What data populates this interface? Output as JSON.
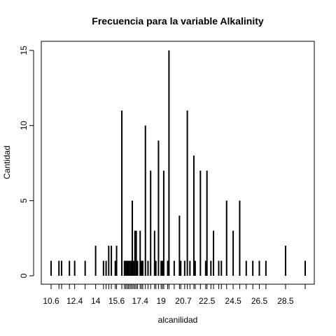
{
  "chart_data": {
    "type": "bar",
    "title": "Frecuencia para la variable Alkalinity",
    "xlabel": "alcanilidad",
    "ylabel": "Cantidad",
    "xlim": [
      10.6,
      30.0
    ],
    "ylim": [
      0,
      15
    ],
    "x_tick_labels": [
      "10.6",
      "12.4",
      "14",
      "15.6",
      "17.4",
      "19",
      "20.7",
      "22.5",
      "24.5",
      "26.5",
      "28.5"
    ],
    "y_ticks": [
      0,
      5,
      10,
      15
    ],
    "grid": false,
    "legend": "none",
    "x": [
      10.6,
      11.2,
      11.4,
      12.0,
      12.4,
      13.2,
      14.0,
      14.6,
      14.8,
      15.0,
      15.2,
      15.5,
      15.6,
      16.0,
      16.2,
      16.3,
      16.4,
      16.5,
      16.6,
      16.7,
      16.8,
      16.9,
      17.0,
      17.1,
      17.2,
      17.4,
      17.5,
      17.6,
      17.8,
      18.0,
      18.2,
      18.5,
      18.6,
      18.8,
      19.0,
      19.1,
      19.2,
      19.5,
      19.6,
      20.0,
      20.4,
      20.5,
      20.8,
      21.0,
      21.2,
      21.5,
      21.6,
      22.0,
      22.4,
      22.5,
      22.8,
      23.0,
      23.4,
      23.6,
      24.0,
      24.5,
      25.0,
      25.5,
      26.0,
      26.5,
      27.0,
      28.5,
      30.0
    ],
    "values": [
      1,
      1,
      1,
      1,
      1,
      1,
      2,
      1,
      1,
      2,
      2,
      1,
      2,
      11,
      1,
      1,
      1,
      1,
      1,
      1,
      5,
      1,
      3,
      3,
      1,
      3,
      1,
      1,
      10,
      1,
      7,
      3,
      1,
      9,
      1,
      1,
      7,
      1,
      15,
      1,
      4,
      1,
      1,
      11,
      1,
      8,
      1,
      7,
      1,
      7,
      1,
      3,
      1,
      1,
      5,
      3,
      5,
      1,
      1,
      1,
      1,
      2,
      1
    ]
  }
}
